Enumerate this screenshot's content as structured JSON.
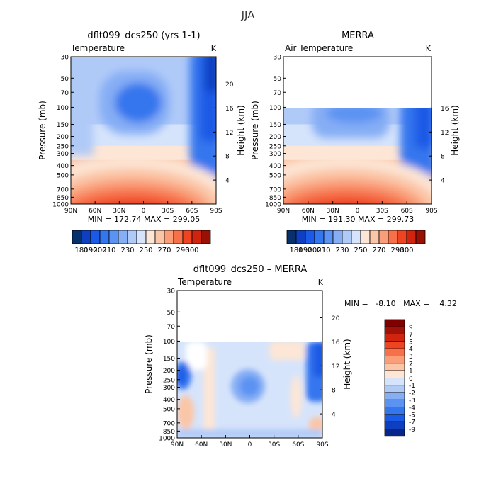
{
  "figure": {
    "title": "JJA"
  },
  "x_ticks": [
    "90N",
    "60N",
    "30N",
    "0",
    "30S",
    "60S",
    "90S"
  ],
  "y_ticks": [
    "30",
    "50",
    "70",
    "100",
    "150",
    "200",
    "250",
    "300",
    "400",
    "500",
    "700",
    "850",
    "1000"
  ],
  "y_label": "Pressure (mb)",
  "height_label": "Height (km)",
  "chart_data": [
    {
      "type": "heatmap",
      "title": "dflt099_dcs250 (yrs 1-1)",
      "subtitle_left": "Temperature",
      "subtitle_right": "K",
      "stats": "MIN = 172.74   MAX = 299.05",
      "min": 172.74,
      "max": 299.05,
      "x_range": [
        90,
        -90
      ],
      "y_range_mb": [
        1000,
        30
      ],
      "data_top_mb": 30,
      "height_ticks_km": [
        "4",
        "8",
        "12",
        "16",
        "20"
      ],
      "colorbar_labels": [
        "180",
        "190",
        "200",
        "210",
        "230",
        "250",
        "270",
        "290",
        "300"
      ],
      "colorbar_levels": [
        180,
        190,
        200,
        210,
        220,
        230,
        240,
        250,
        260,
        270,
        280,
        290,
        300
      ]
    },
    {
      "type": "heatmap",
      "title": "MERRA",
      "subtitle_left": "Air Temperature",
      "subtitle_right": "K",
      "stats": "MIN = 191.30   MAX = 299.73",
      "min": 191.3,
      "max": 299.73,
      "x_range": [
        90,
        -90
      ],
      "y_range_mb": [
        1000,
        30
      ],
      "data_top_mb": 100,
      "height_ticks_km": [
        "4",
        "8",
        "12",
        "16"
      ],
      "colorbar_labels": [
        "180",
        "190",
        "200",
        "210",
        "230",
        "250",
        "270",
        "290",
        "300"
      ],
      "colorbar_levels": [
        180,
        190,
        200,
        210,
        220,
        230,
        240,
        250,
        260,
        270,
        280,
        290,
        300
      ]
    },
    {
      "type": "heatmap",
      "title": "dflt099_dcs250 – MERRA",
      "subtitle_left": "Temperature",
      "subtitle_right": "K",
      "stats": "MIN =   -8.10   MAX =    4.32",
      "min": -8.1,
      "max": 4.32,
      "x_range": [
        90,
        -90
      ],
      "y_range_mb": [
        1000,
        30
      ],
      "data_top_mb": 100,
      "height_ticks_km": [
        "4",
        "8",
        "12",
        "16",
        "20"
      ],
      "colorbar_labels": [
        "9",
        "7",
        "5",
        "4",
        "3",
        "2",
        "1",
        "0",
        "-1",
        "-2",
        "-3",
        "-4",
        "-5",
        "-7",
        "-9"
      ],
      "colorbar_levels": [
        -9,
        -7,
        -5,
        -4,
        -3,
        -2,
        -1,
        0,
        1,
        2,
        3,
        4,
        5,
        7,
        9
      ]
    }
  ],
  "colors": {
    "temp_scale": [
      "#08306b",
      "#0d3fc0",
      "#1a5ae6",
      "#3476ee",
      "#5b93f2",
      "#86aef5",
      "#b0caf8",
      "#d6e4fb",
      "#fde6d6",
      "#fbc6a7",
      "#f99e78",
      "#f6704a",
      "#ee4422",
      "#d0240e",
      "#991005"
    ],
    "diff_scale": [
      "#08268a",
      "#0d3fc0",
      "#1a5ae6",
      "#3476ee",
      "#5b93f2",
      "#86aef5",
      "#b0caf8",
      "#d6e4fb",
      "#fde6d6",
      "#fbc6a7",
      "#f99e78",
      "#f6704a",
      "#ee4422",
      "#d0240e",
      "#a01208",
      "#800000"
    ]
  }
}
